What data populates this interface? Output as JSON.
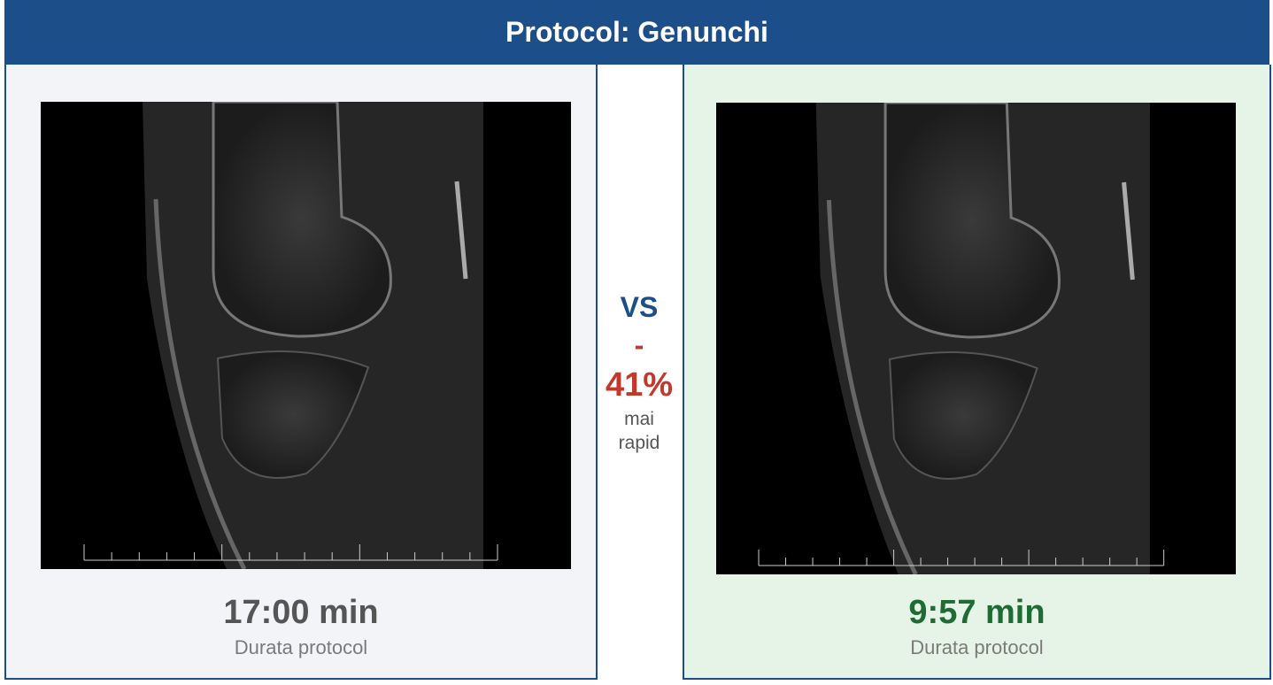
{
  "header": {
    "title": "Protocol: Genunchi"
  },
  "left": {
    "time": "17:00 min",
    "caption": "Durata protocol"
  },
  "center": {
    "vs": "VS",
    "dash": "-",
    "percent": "41%",
    "note": "mai rapid"
  },
  "right": {
    "time": "9:57 min",
    "caption": "Durata protocol"
  }
}
